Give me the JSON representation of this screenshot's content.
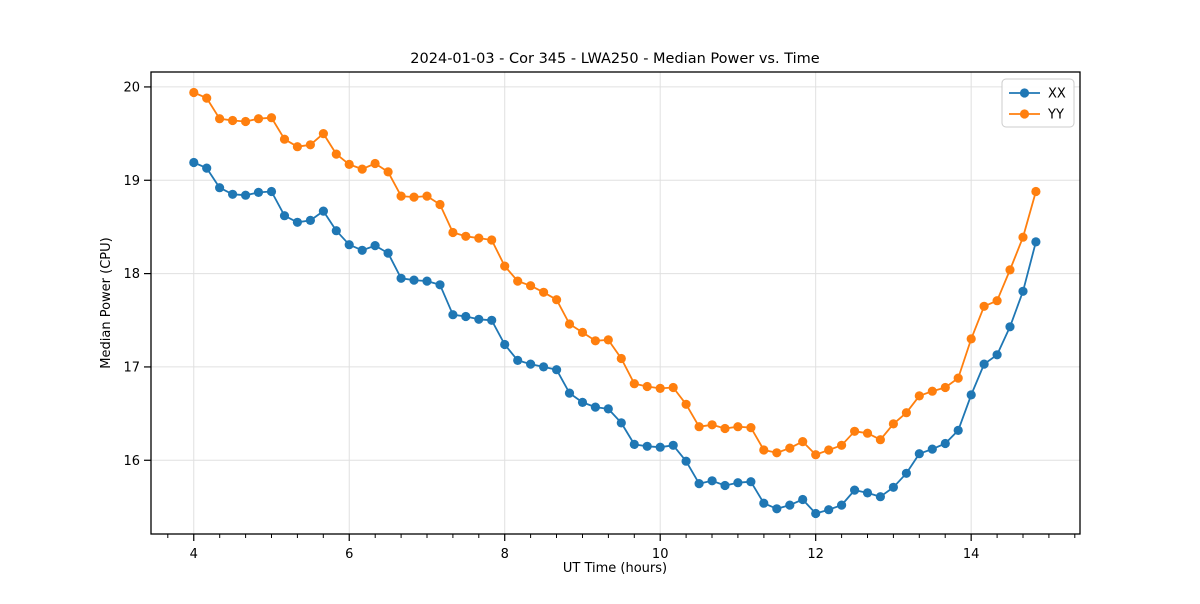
{
  "figure": {
    "title": "2024-01-03 - Cor 345 - LWA250 - Median Power vs. Time",
    "xlabel": "UT Time (hours)",
    "ylabel": "Median Power (CPU)"
  },
  "colors": {
    "series_xx": "#1f77b4",
    "series_yy": "#ff7f0e",
    "grid": "#e0e0e0",
    "spine": "#000000",
    "legend_border": "#cccccc"
  },
  "legend": {
    "entries": [
      "XX",
      "YY"
    ],
    "position": "upper right"
  },
  "chart_data": {
    "type": "line",
    "title": "2024-01-03 - Cor 345 - LWA250 - Median Power vs. Time",
    "xlabel": "UT Time (hours)",
    "ylabel": "Median Power (CPU)",
    "xlim": [
      3.45,
      15.4
    ],
    "ylim": [
      15.21,
      20.16
    ],
    "xticks": [
      4,
      6,
      8,
      10,
      12,
      14
    ],
    "yticks": [
      16,
      17,
      18,
      19,
      20
    ],
    "x_minor_step": 0.3333,
    "grid": true,
    "legend_position": "upper right",
    "marker": "circle",
    "x": [
      4.0,
      4.167,
      4.333,
      4.5,
      4.667,
      4.833,
      5.0,
      5.167,
      5.333,
      5.5,
      5.667,
      5.833,
      6.0,
      6.167,
      6.333,
      6.5,
      6.667,
      6.833,
      7.0,
      7.167,
      7.333,
      7.5,
      7.667,
      7.833,
      8.0,
      8.167,
      8.333,
      8.5,
      8.667,
      8.833,
      9.0,
      9.167,
      9.333,
      9.5,
      9.667,
      9.833,
      10.0,
      10.167,
      10.333,
      10.5,
      10.667,
      10.833,
      11.0,
      11.167,
      11.333,
      11.5,
      11.667,
      11.833,
      12.0,
      12.167,
      12.333,
      12.5,
      12.667,
      12.833,
      13.0,
      13.167,
      13.333,
      13.5,
      13.667,
      13.833,
      14.0,
      14.167,
      14.333,
      14.5,
      14.667,
      14.833
    ],
    "series": [
      {
        "name": "XX",
        "color": "#1f77b4",
        "values": [
          19.19,
          19.13,
          18.92,
          18.85,
          18.84,
          18.87,
          18.88,
          18.62,
          18.55,
          18.57,
          18.67,
          18.46,
          18.31,
          18.25,
          18.3,
          18.22,
          17.95,
          17.93,
          17.92,
          17.88,
          17.56,
          17.54,
          17.51,
          17.5,
          17.24,
          17.07,
          17.03,
          17.0,
          16.97,
          16.72,
          16.62,
          16.57,
          16.55,
          16.4,
          16.17,
          16.15,
          16.14,
          16.16,
          15.99,
          15.75,
          15.78,
          15.73,
          15.76,
          15.77,
          15.54,
          15.48,
          15.52,
          15.58,
          15.43,
          15.47,
          15.52,
          15.68,
          15.65,
          15.61,
          15.71,
          15.86,
          16.07,
          16.12,
          16.18,
          16.32,
          16.7,
          17.03,
          17.13,
          17.43,
          17.81,
          18.34
        ]
      },
      {
        "name": "YY",
        "color": "#ff7f0e",
        "values": [
          19.94,
          19.88,
          19.66,
          19.64,
          19.63,
          19.66,
          19.67,
          19.44,
          19.36,
          19.38,
          19.5,
          19.28,
          19.17,
          19.12,
          19.18,
          19.09,
          18.83,
          18.82,
          18.83,
          18.74,
          18.44,
          18.4,
          18.38,
          18.36,
          18.08,
          17.92,
          17.87,
          17.8,
          17.72,
          17.46,
          17.37,
          17.28,
          17.29,
          17.09,
          16.82,
          16.79,
          16.77,
          16.78,
          16.6,
          16.36,
          16.38,
          16.34,
          16.36,
          16.35,
          16.11,
          16.08,
          16.13,
          16.2,
          16.06,
          16.11,
          16.16,
          16.31,
          16.29,
          16.22,
          16.39,
          16.51,
          16.69,
          16.74,
          16.78,
          16.88,
          17.3,
          17.65,
          17.71,
          18.04,
          18.39,
          18.88
        ]
      }
    ]
  }
}
